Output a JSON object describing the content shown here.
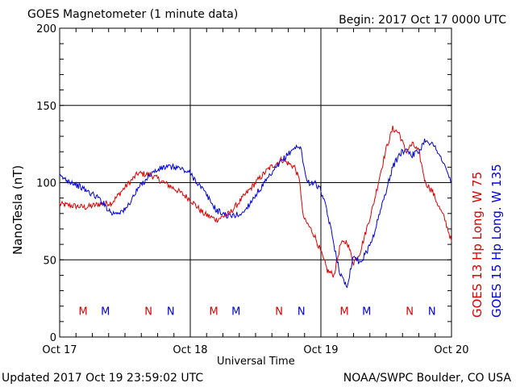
{
  "header": {
    "title": "GOES Magnetometer (1 minute data)",
    "begin": "Begin:  2017 Oct 17 0000 UTC"
  },
  "footer": {
    "updated": "Updated 2017 Oct 19 23:59:02 UTC",
    "credit": "NOAA/SWPC Boulder, CO USA"
  },
  "colors": {
    "goes13": "#dd0000",
    "goes15": "#0000dd",
    "grid": "#000000"
  },
  "chart_data": {
    "type": "line",
    "ylabel": "NanoTesla (nT)",
    "xlabel": "Universal Time",
    "ylim": [
      0,
      200
    ],
    "xlim_days": [
      0,
      3
    ],
    "y_ticks": [
      0,
      50,
      100,
      150,
      200
    ],
    "x_tick_labels": [
      "Oct 17",
      "Oct 18",
      "Oct 19",
      "Oct 20"
    ],
    "grid": true,
    "series": [
      {
        "name": "GOES 13 Hp  Long. W 75",
        "x": [
          0,
          0.1,
          0.2,
          0.3,
          0.4,
          0.5,
          0.6,
          0.7,
          0.8,
          0.9,
          1.0,
          1.1,
          1.2,
          1.3,
          1.4,
          1.5,
          1.6,
          1.7,
          1.8,
          1.84,
          1.86,
          1.88,
          1.9,
          1.95,
          2.0,
          2.05,
          2.1,
          2.15,
          2.2,
          2.25,
          2.3,
          2.35,
          2.4,
          2.45,
          2.5,
          2.55,
          2.6,
          2.65,
          2.7,
          2.75,
          2.8,
          2.85,
          2.9,
          2.95,
          3.0
        ],
        "y": [
          86,
          85,
          84,
          86,
          87,
          97,
          106,
          105,
          100,
          95,
          89,
          80,
          76,
          80,
          90,
          100,
          109,
          115,
          110,
          100,
          80,
          75,
          73,
          66,
          55,
          43,
          40,
          60,
          62,
          48,
          55,
          70,
          85,
          104,
          122,
          135,
          132,
          120,
          125,
          120,
          100,
          95,
          85,
          76,
          62
        ]
      },
      {
        "name": "GOES 15 Hp  Long. W 135",
        "x": [
          0,
          0.1,
          0.2,
          0.3,
          0.4,
          0.5,
          0.6,
          0.7,
          0.8,
          0.9,
          1.0,
          1.1,
          1.2,
          1.3,
          1.4,
          1.5,
          1.6,
          1.7,
          1.8,
          1.85,
          1.88,
          1.9,
          1.95,
          2.0,
          2.05,
          2.1,
          2.15,
          2.2,
          2.25,
          2.3,
          2.35,
          2.4,
          2.45,
          2.5,
          2.55,
          2.6,
          2.65,
          2.7,
          2.75,
          2.8,
          2.85,
          2.9,
          2.95,
          3.0
        ],
        "y": [
          104,
          100,
          95,
          90,
          80,
          82,
          96,
          106,
          110,
          110,
          106,
          95,
          82,
          78,
          80,
          92,
          103,
          114,
          123,
          122,
          105,
          100,
          100,
          95,
          80,
          60,
          40,
          33,
          53,
          48,
          55,
          65,
          80,
          95,
          110,
          118,
          122,
          118,
          120,
          128,
          125,
          120,
          110,
          100
        ]
      }
    ],
    "event_markers": [
      {
        "label": "M",
        "x": 0.18,
        "series": 0
      },
      {
        "label": "M",
        "x": 0.35,
        "series": 1
      },
      {
        "label": "N",
        "x": 0.68,
        "series": 0
      },
      {
        "label": "N",
        "x": 0.85,
        "series": 1
      },
      {
        "label": "M",
        "x": 1.18,
        "series": 0
      },
      {
        "label": "M",
        "x": 1.35,
        "series": 1
      },
      {
        "label": "N",
        "x": 1.68,
        "series": 0
      },
      {
        "label": "N",
        "x": 1.85,
        "series": 1
      },
      {
        "label": "M",
        "x": 2.18,
        "series": 0
      },
      {
        "label": "M",
        "x": 2.35,
        "series": 1
      },
      {
        "label": "N",
        "x": 2.68,
        "series": 0
      },
      {
        "label": "N",
        "x": 2.85,
        "series": 1
      }
    ],
    "marker_y": 17
  }
}
